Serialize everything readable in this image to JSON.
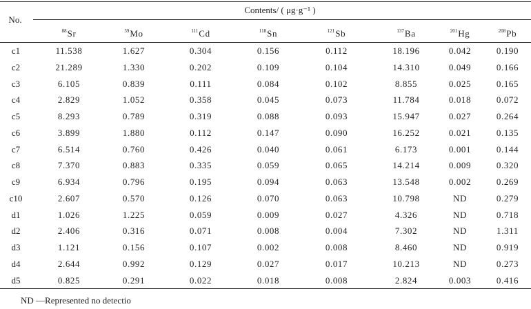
{
  "table": {
    "no_header": "No.",
    "group_header": "Contents/ ( μg·g⁻¹ )",
    "columns": [
      {
        "mass": "88",
        "element": "Sr"
      },
      {
        "mass": "59",
        "element": "Mo"
      },
      {
        "mass": "111",
        "element": "Cd"
      },
      {
        "mass": "118",
        "element": "Sn"
      },
      {
        "mass": "121",
        "element": "Sb"
      },
      {
        "mass": "137",
        "element": "Ba"
      },
      {
        "mass": "201",
        "element": "Hg"
      },
      {
        "mass": "208",
        "element": "Pb"
      }
    ],
    "rows": [
      {
        "id": "c1",
        "values": [
          "11.538",
          "1.627",
          "0.304",
          "0.156",
          "0.112",
          "18.196",
          "0.042",
          "0.190"
        ]
      },
      {
        "id": "c2",
        "values": [
          "21.289",
          "1.330",
          "0.202",
          "0.109",
          "0.104",
          "14.310",
          "0.049",
          "0.166"
        ]
      },
      {
        "id": "c3",
        "values": [
          "6.105",
          "0.839",
          "0.111",
          "0.084",
          "0.102",
          "8.855",
          "0.025",
          "0.165"
        ]
      },
      {
        "id": "c4",
        "values": [
          "2.829",
          "1.052",
          "0.358",
          "0.045",
          "0.073",
          "11.784",
          "0.018",
          "0.072"
        ]
      },
      {
        "id": "c5",
        "values": [
          "8.293",
          "0.789",
          "0.319",
          "0.088",
          "0.093",
          "15.947",
          "0.027",
          "0.264"
        ]
      },
      {
        "id": "c6",
        "values": [
          "3.899",
          "1.880",
          "0.112",
          "0.147",
          "0.090",
          "16.252",
          "0.021",
          "0.135"
        ]
      },
      {
        "id": "c7",
        "values": [
          "6.514",
          "0.760",
          "0.426",
          "0.040",
          "0.061",
          "6.173",
          "0.001",
          "0.144"
        ]
      },
      {
        "id": "c8",
        "values": [
          "7.370",
          "0.883",
          "0.335",
          "0.059",
          "0.065",
          "14.214",
          "0.009",
          "0.320"
        ]
      },
      {
        "id": "c9",
        "values": [
          "6.934",
          "0.796",
          "0.195",
          "0.094",
          "0.063",
          "13.548",
          "0.002",
          "0.269"
        ]
      },
      {
        "id": "c10",
        "values": [
          "2.607",
          "0.570",
          "0.126",
          "0.070",
          "0.063",
          "10.798",
          "ND",
          "0.279"
        ]
      },
      {
        "id": "d1",
        "values": [
          "1.026",
          "1.225",
          "0.059",
          "0.009",
          "0.027",
          "4.326",
          "ND",
          "0.718"
        ]
      },
      {
        "id": "d2",
        "values": [
          "2.406",
          "0.316",
          "0.071",
          "0.008",
          "0.004",
          "7.302",
          "ND",
          "1.311"
        ]
      },
      {
        "id": "d3",
        "values": [
          "1.121",
          "0.156",
          "0.107",
          "0.002",
          "0.008",
          "8.460",
          "ND",
          "0.919"
        ]
      },
      {
        "id": "d4",
        "values": [
          "2.644",
          "0.992",
          "0.129",
          "0.027",
          "0.017",
          "10.213",
          "ND",
          "0.273"
        ]
      },
      {
        "id": "d5",
        "values": [
          "0.825",
          "0.291",
          "0.022",
          "0.018",
          "0.008",
          "2.824",
          "0.003",
          "0.416"
        ]
      }
    ],
    "footnote": "ND —Represented no detectio"
  }
}
